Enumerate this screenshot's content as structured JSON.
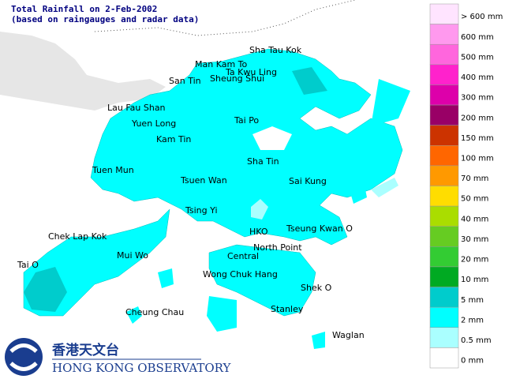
{
  "title": [
    "Total Rainfall on 2-Feb-2002",
    "(based on raingauges and radar data)"
  ],
  "places": [
    "Sha Tau Kok",
    "Man Kam To",
    "Ta Kwu Ling",
    "San Tin",
    "Sheung Shui",
    "Lau Fau Shan",
    "Yuen Long",
    "Tai Po",
    "Kam Tin",
    "Sha Tin",
    "Tuen Mun",
    "Tsuen Wan",
    "Sai Kung",
    "Tsing Yi",
    "Chek Lap Kok",
    "HKO",
    "Tseung Kwan O",
    "Mui Wo",
    "North Point",
    "Central",
    "Tai O",
    "Wong Chuk Hang",
    "Shek O",
    "Cheung Chau",
    "Stanley",
    "Waglan"
  ],
  "legend": [
    {
      "label": "> 600 mm",
      "color": "#ffe4ff"
    },
    {
      "label": "600 mm",
      "color": "#ff99ee"
    },
    {
      "label": "500 mm",
      "color": "#ff66dd"
    },
    {
      "label": "400 mm",
      "color": "#ff22cc"
    },
    {
      "label": "300 mm",
      "color": "#dd00aa"
    },
    {
      "label": "200 mm",
      "color": "#990066"
    },
    {
      "label": "150 mm",
      "color": "#cc3300"
    },
    {
      "label": "100 mm",
      "color": "#ff6600"
    },
    {
      "label": "70 mm",
      "color": "#ff9900"
    },
    {
      "label": "50 mm",
      "color": "#ffdd00"
    },
    {
      "label": "40 mm",
      "color": "#aadd00"
    },
    {
      "label": "30 mm",
      "color": "#66cc22"
    },
    {
      "label": "20 mm",
      "color": "#33cc33"
    },
    {
      "label": "10 mm",
      "color": "#00aa22"
    },
    {
      "label": "5 mm",
      "color": "#00cccc"
    },
    {
      "label": "2 mm",
      "color": "#00ffff"
    },
    {
      "label": "0.5 mm",
      "color": "#aaffff"
    },
    {
      "label": "0 mm",
      "color": "#ffffff"
    }
  ],
  "logo": {
    "chinese": "香港天文台",
    "english": "Hong Kong Observatory"
  }
}
